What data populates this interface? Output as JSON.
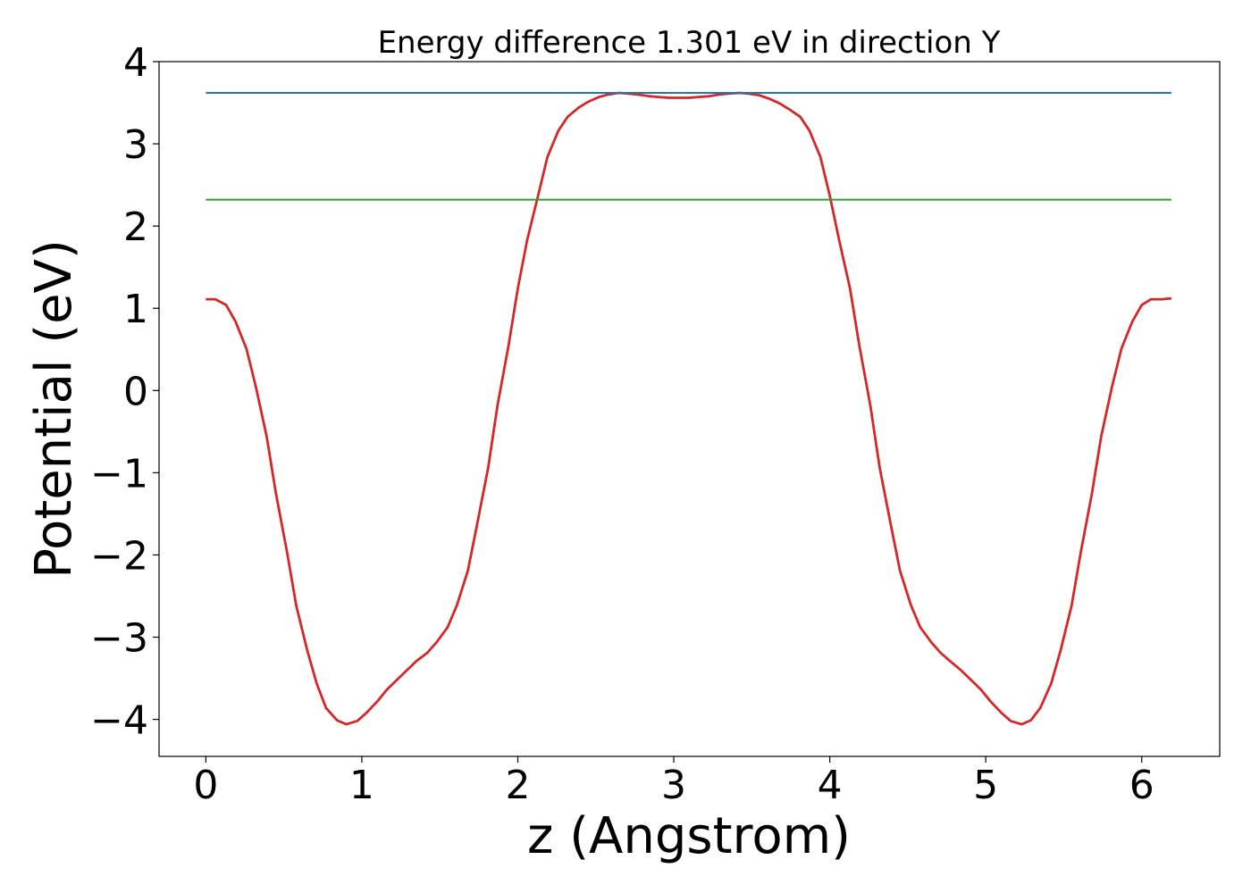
{
  "chart_data": {
    "type": "line",
    "title": "Energy difference 1.301 eV in direction Y",
    "xlabel": "z (Angstrom)",
    "ylabel": "Potential (eV)",
    "xlim": [
      -0.3,
      6.5
    ],
    "ylim": [
      -4.45,
      4.0
    ],
    "xticks": [
      0,
      1,
      2,
      3,
      4,
      5,
      6
    ],
    "xtick_labels": [
      "0",
      "1",
      "2",
      "3",
      "4",
      "5",
      "6"
    ],
    "yticks": [
      -4,
      -3,
      -2,
      -1,
      0,
      1,
      2,
      3,
      4
    ],
    "ytick_labels": [
      "−4",
      "−3",
      "−2",
      "−1",
      "0",
      "1",
      "2",
      "3",
      "4"
    ],
    "grid": false,
    "colors": {
      "potential": "#d62728",
      "upper_level": "#1f77b4",
      "lower_level": "#2ca02c"
    },
    "series": [
      {
        "key": "potential",
        "x": [
          0.0,
          0.06,
          0.13,
          0.19,
          0.26,
          0.32,
          0.39,
          0.45,
          0.52,
          0.58,
          0.65,
          0.71,
          0.77,
          0.84,
          0.9,
          0.97,
          1.03,
          1.1,
          1.16,
          1.23,
          1.29,
          1.35,
          1.42,
          1.48,
          1.55,
          1.61,
          1.68,
          1.74,
          1.81,
          1.87,
          1.94,
          2.0,
          2.06,
          2.13,
          2.19,
          2.26,
          2.32,
          2.39,
          2.45,
          2.52,
          2.58,
          2.65,
          2.71,
          2.77,
          2.84,
          2.9,
          2.97,
          3.03,
          3.1,
          3.16,
          3.23,
          3.29,
          3.35,
          3.42,
          3.48,
          3.55,
          3.61,
          3.68,
          3.74,
          3.81,
          3.87,
          3.94,
          4.0,
          4.06,
          4.13,
          4.19,
          4.26,
          4.32,
          4.39,
          4.45,
          4.52,
          4.58,
          4.65,
          4.71,
          4.77,
          4.84,
          4.9,
          4.97,
          5.03,
          5.1,
          5.16,
          5.23,
          5.29,
          5.35,
          5.42,
          5.48,
          5.55,
          5.61,
          5.68,
          5.74,
          5.81,
          5.87,
          5.94,
          6.0,
          6.06,
          6.13,
          6.19
        ],
        "y": [
          1.11,
          1.11,
          1.04,
          0.84,
          0.51,
          0.05,
          -0.56,
          -1.26,
          -1.96,
          -2.62,
          -3.16,
          -3.56,
          -3.86,
          -4.01,
          -4.06,
          -4.02,
          -3.92,
          -3.78,
          -3.64,
          -3.51,
          -3.4,
          -3.29,
          -3.19,
          -3.06,
          -2.88,
          -2.61,
          -2.19,
          -1.62,
          -0.94,
          -0.18,
          0.54,
          1.24,
          1.83,
          2.37,
          2.84,
          3.16,
          3.33,
          3.44,
          3.51,
          3.57,
          3.6,
          3.62,
          3.61,
          3.6,
          3.58,
          3.57,
          3.56,
          3.56,
          3.56,
          3.57,
          3.58,
          3.6,
          3.61,
          3.62,
          3.61,
          3.59,
          3.55,
          3.49,
          3.42,
          3.33,
          3.16,
          2.84,
          2.37,
          1.83,
          1.24,
          0.54,
          -0.18,
          -0.94,
          -1.62,
          -2.19,
          -2.61,
          -2.88,
          -3.06,
          -3.19,
          -3.29,
          -3.4,
          -3.51,
          -3.64,
          -3.78,
          -3.92,
          -4.02,
          -4.06,
          -4.01,
          -3.86,
          -3.56,
          -3.16,
          -2.62,
          -1.96,
          -1.26,
          -0.56,
          0.05,
          0.51,
          0.84,
          1.04,
          1.11,
          1.11,
          1.12
        ]
      },
      {
        "key": "upper_level",
        "x": [
          0.0,
          6.19
        ],
        "y": [
          3.62,
          3.62
        ]
      },
      {
        "key": "lower_level",
        "x": [
          0.0,
          6.19
        ],
        "y": [
          2.32,
          2.32
        ]
      }
    ]
  }
}
